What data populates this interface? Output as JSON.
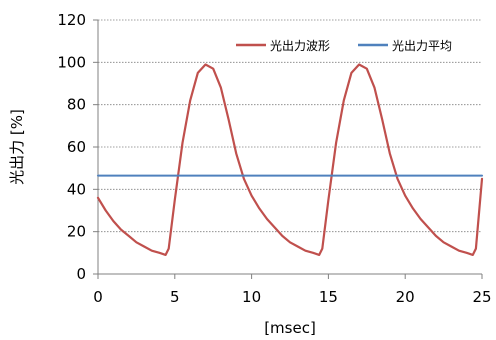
{
  "chart_data": {
    "type": "line",
    "xlabel": "[msec]",
    "ylabel": "光出力 [%]",
    "xlim": [
      0,
      25
    ],
    "ylim": [
      0,
      120
    ],
    "xticks": [
      0,
      5,
      10,
      15,
      20,
      25
    ],
    "yticks": [
      0,
      20,
      40,
      60,
      80,
      100,
      120
    ],
    "grid": {
      "y": true,
      "x": false,
      "style": "dotted"
    },
    "legend": "top-right",
    "series": [
      {
        "name": "光出力波形",
        "color": "#C0504D",
        "x": [
          0,
          0.5,
          1,
          1.5,
          2,
          2.5,
          3,
          3.5,
          4,
          4.4,
          4.6,
          5,
          5.5,
          6,
          6.5,
          7,
          7.5,
          8,
          8.5,
          9,
          9.5,
          10,
          10.5,
          11,
          11.5,
          12,
          12.5,
          13,
          13.5,
          14,
          14.4,
          14.6,
          15,
          15.5,
          16,
          16.5,
          17,
          17.5,
          18,
          18.5,
          19,
          19.5,
          20,
          20.5,
          21,
          21.5,
          22,
          22.5,
          23,
          23.5,
          24,
          24.4,
          24.6,
          25
        ],
        "y": [
          36,
          30,
          25,
          21,
          18,
          15,
          13,
          11,
          10,
          9,
          12,
          35,
          62,
          82,
          95,
          99,
          97,
          88,
          73,
          57,
          45,
          37,
          31,
          26,
          22,
          18,
          15,
          13,
          11,
          10,
          9,
          12,
          35,
          62,
          82,
          95,
          99,
          97,
          88,
          73,
          57,
          45,
          37,
          31,
          26,
          22,
          18,
          15,
          13,
          11,
          10,
          9,
          12,
          45
        ]
      },
      {
        "name": "光出力平均",
        "color": "#4F81BD",
        "x": [
          0,
          25
        ],
        "y": [
          46.5,
          46.5
        ]
      }
    ]
  }
}
